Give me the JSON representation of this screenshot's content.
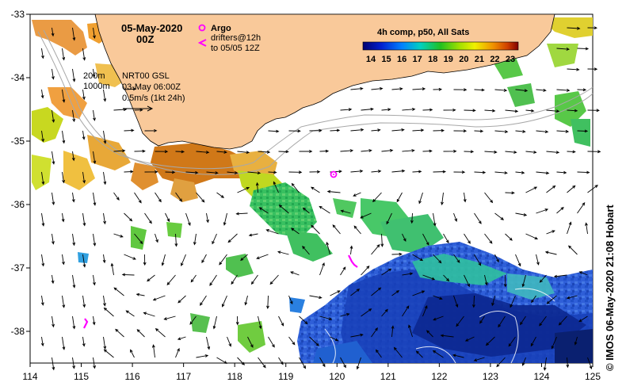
{
  "title": {
    "date": "05-May-2020",
    "time": "00Z"
  },
  "legend": {
    "argo_label": "Argo",
    "drifters_line1": "drifters@12h",
    "drifters_line2": "to 05/05 12Z",
    "contour_200": "200m",
    "contour_1000": "1000m",
    "altimetry_line1": "NRT00 GSL",
    "altimetry_line2": "03-May 06:00Z",
    "scale_text": "0.5m/s (1kt 24h)",
    "composite": "4h comp, p50, All Sats",
    "colorbar_ticks": [
      "14",
      "15",
      "16",
      "17",
      "18",
      "19",
      "20",
      "21",
      "22",
      "23"
    ]
  },
  "axes": {
    "x_ticks": [
      "114",
      "115",
      "116",
      "117",
      "118",
      "119",
      "120",
      "121",
      "122",
      "123",
      "124",
      "125"
    ],
    "y_ticks": [
      "-33",
      "-34",
      "-35",
      "-36",
      "-37",
      "-38"
    ],
    "xlim": [
      114,
      125
    ],
    "ylim": [
      -38.5,
      -33
    ]
  },
  "credit": "© IMOS 06-May-2020 21:08 Hobart",
  "colors": {
    "land": "#f9c99a",
    "argo": "#ff00ff",
    "drifter": "#ff00ff"
  },
  "markers": {
    "argo": {
      "lon": 119.92,
      "lat": -35.52
    }
  }
}
